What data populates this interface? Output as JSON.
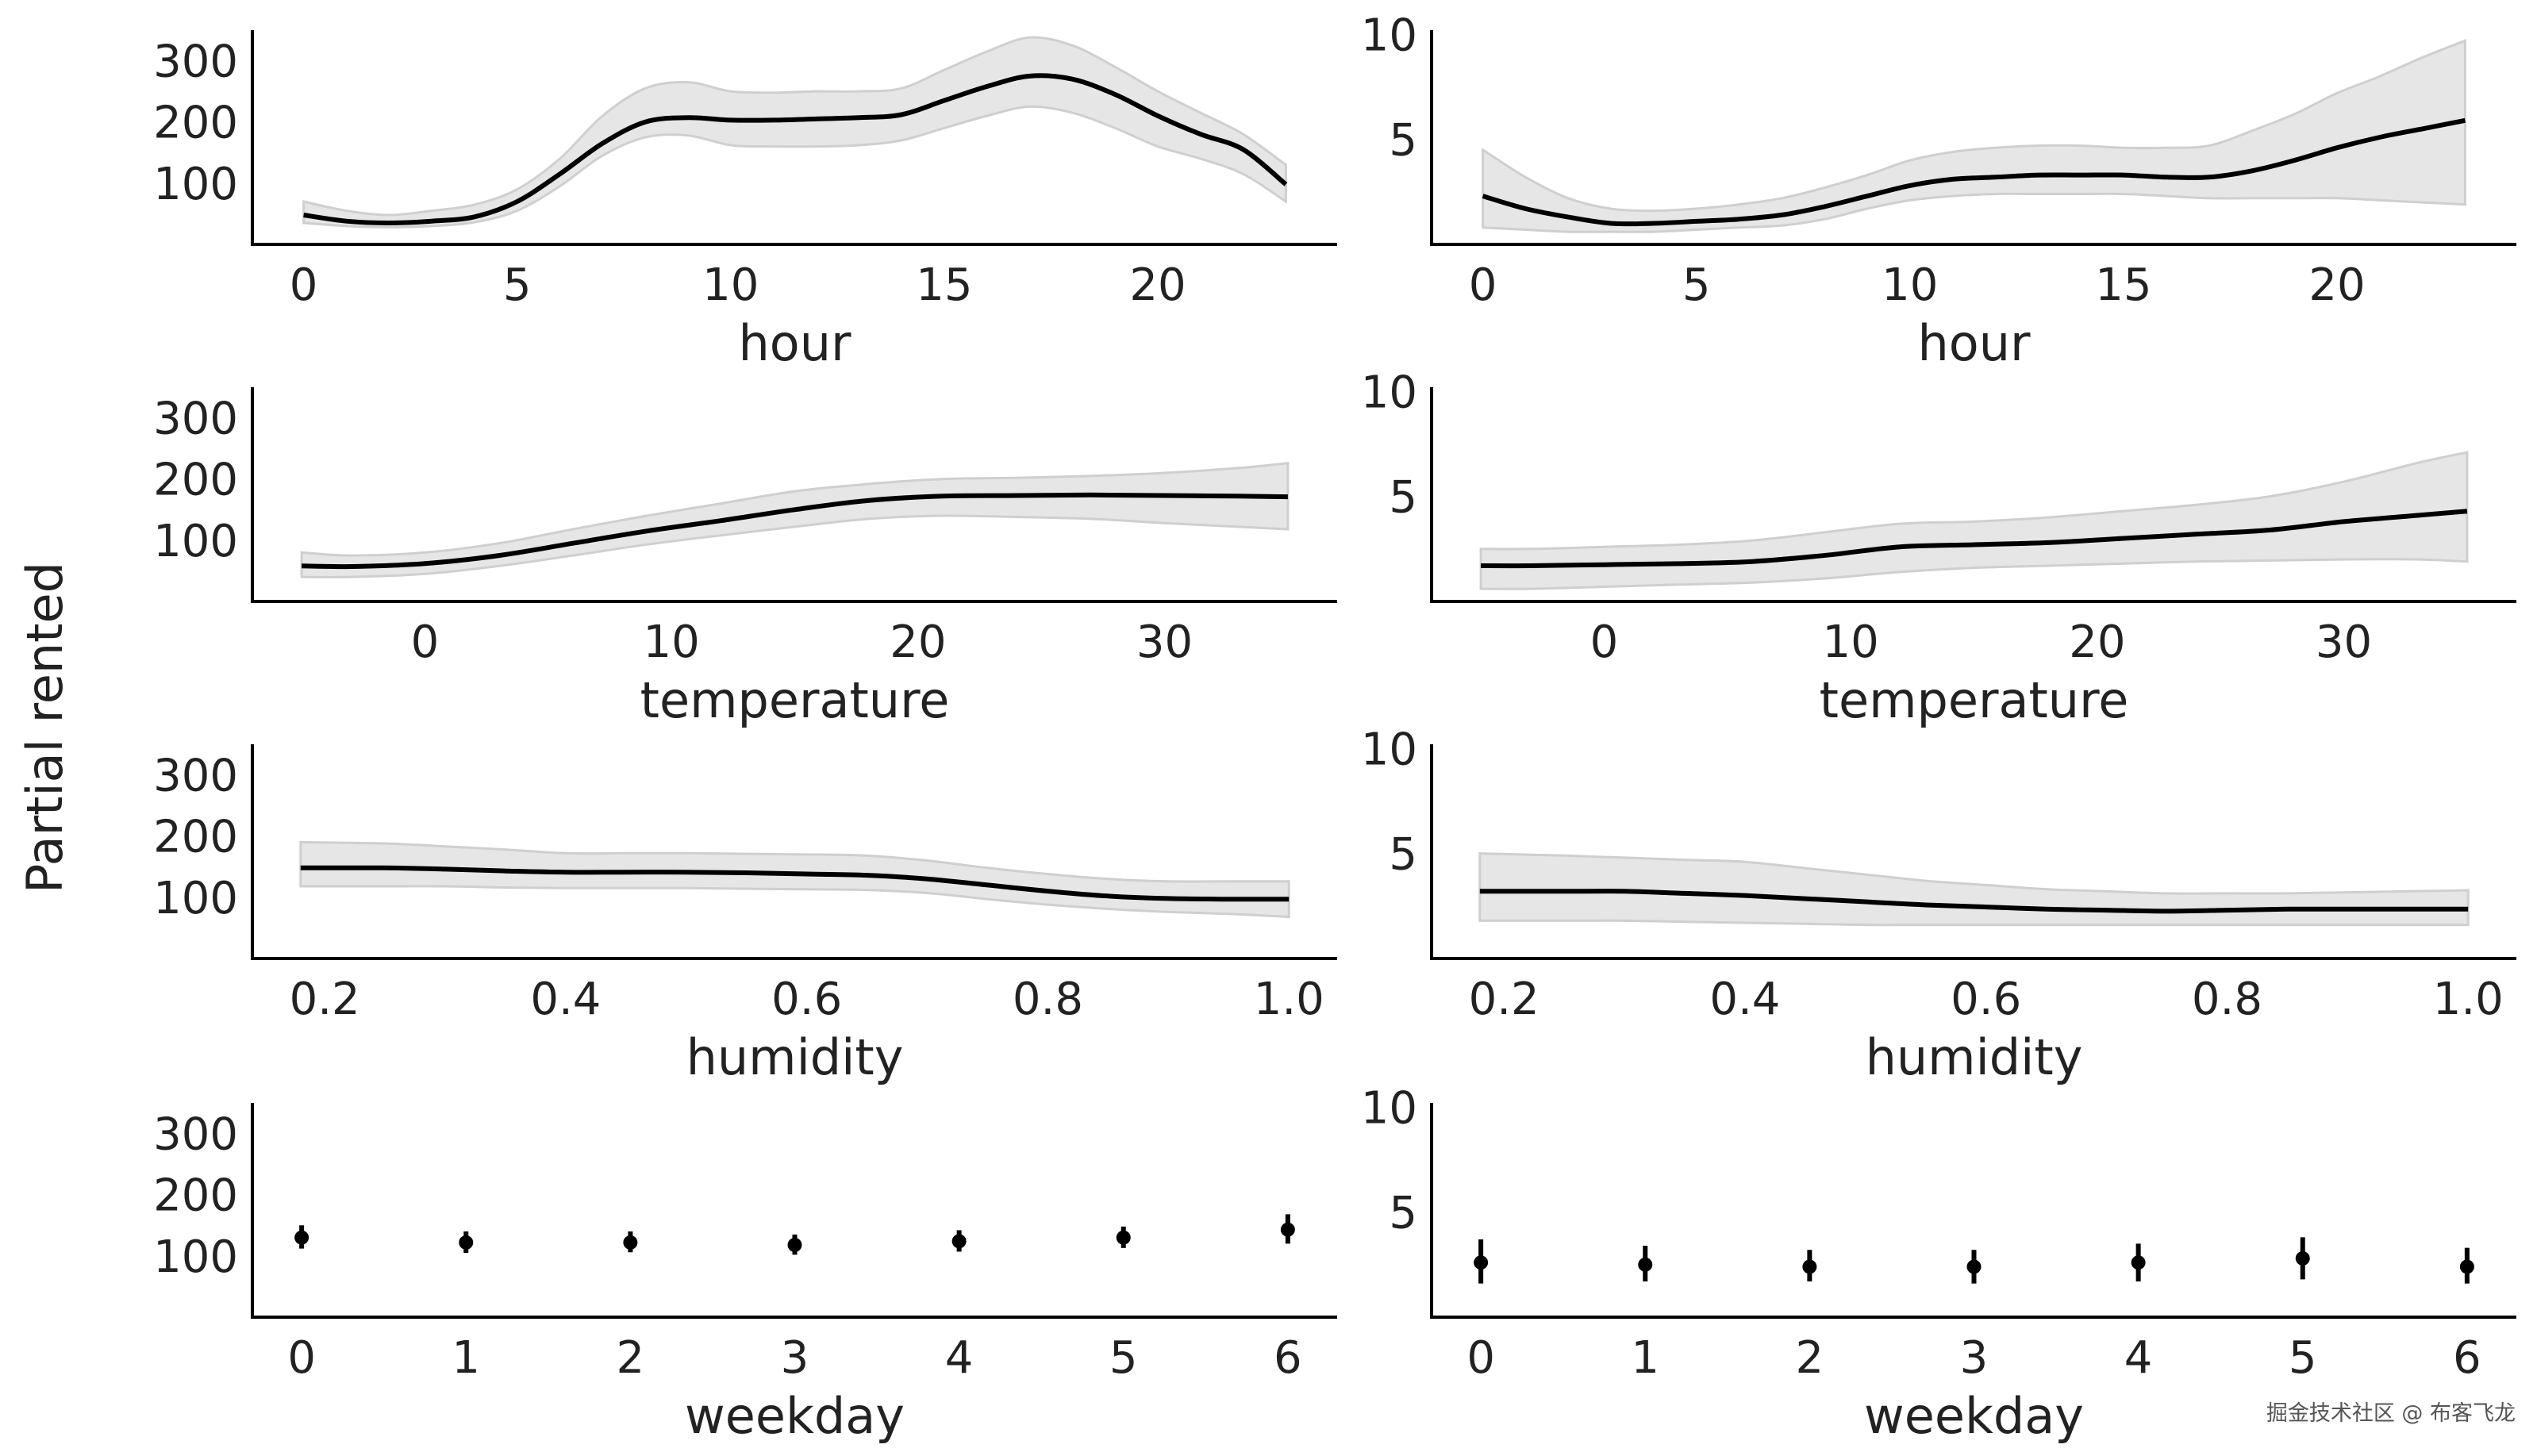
{
  "figure": {
    "ylabel": "Partial rented",
    "watermark": "掘金技术社区 @ 布客飞龙"
  },
  "chart_data": [
    {
      "type": "line",
      "panel": "left-hour",
      "xlabel": "hour",
      "xlim": [
        -1.2,
        24.2
      ],
      "ylim": [
        0,
        350
      ],
      "xticks": [
        0,
        5,
        10,
        15,
        20
      ],
      "xtick_labels": [
        "0",
        "5",
        "10",
        "15",
        "20"
      ],
      "yticks": [
        100,
        200,
        300
      ],
      "ytick_labels": [
        "100",
        "200",
        "300"
      ],
      "x": [
        0,
        1,
        2,
        3,
        4,
        5,
        6,
        7,
        8,
        9,
        10,
        11,
        12,
        13,
        14,
        15,
        16,
        17,
        18,
        19,
        20,
        21,
        22,
        23
      ],
      "y": [
        48,
        38,
        35,
        38,
        45,
        70,
        115,
        165,
        200,
        207,
        203,
        203,
        205,
        207,
        212,
        235,
        258,
        275,
        270,
        245,
        210,
        180,
        155,
        98
      ],
      "lower": [
        35,
        30,
        28,
        30,
        36,
        55,
        95,
        145,
        175,
        178,
        162,
        160,
        160,
        162,
        170,
        190,
        210,
        225,
        215,
        190,
        160,
        140,
        115,
        70
      ],
      "upper": [
        70,
        55,
        48,
        55,
        65,
        90,
        140,
        210,
        255,
        265,
        250,
        248,
        250,
        250,
        255,
        285,
        315,
        338,
        325,
        290,
        250,
        215,
        180,
        130
      ]
    },
    {
      "type": "line",
      "panel": "right-hour",
      "xlabel": "hour",
      "xlim": [
        -1.2,
        24.2
      ],
      "ylim": [
        0,
        10.2
      ],
      "xticks": [
        0,
        5,
        10,
        15,
        20
      ],
      "xtick_labels": [
        "0",
        "5",
        "10",
        "15",
        "20"
      ],
      "yticks": [
        5,
        10
      ],
      "ytick_labels": [
        "5",
        "10"
      ],
      "x": [
        0,
        1,
        2,
        3,
        4,
        5,
        6,
        7,
        8,
        9,
        10,
        11,
        12,
        13,
        14,
        15,
        16,
        17,
        18,
        19,
        20,
        21,
        22,
        23
      ],
      "y": [
        2.3,
        1.7,
        1.3,
        1.0,
        1.0,
        1.1,
        1.2,
        1.4,
        1.8,
        2.3,
        2.8,
        3.1,
        3.2,
        3.3,
        3.3,
        3.3,
        3.2,
        3.2,
        3.5,
        4.0,
        4.6,
        5.1,
        5.5,
        5.9
      ],
      "lower": [
        0.8,
        0.7,
        0.6,
        0.6,
        0.6,
        0.7,
        0.8,
        0.9,
        1.2,
        1.7,
        2.1,
        2.3,
        2.4,
        2.4,
        2.4,
        2.4,
        2.3,
        2.2,
        2.2,
        2.2,
        2.2,
        2.1,
        2.0,
        1.9
      ],
      "upper": [
        4.5,
        3.2,
        2.2,
        1.7,
        1.6,
        1.7,
        1.9,
        2.2,
        2.7,
        3.3,
        4.0,
        4.4,
        4.6,
        4.7,
        4.7,
        4.6,
        4.6,
        4.7,
        5.4,
        6.2,
        7.2,
        8.0,
        8.9,
        9.7
      ]
    },
    {
      "type": "line",
      "panel": "left-temperature",
      "xlabel": "temperature",
      "xlim": [
        -7,
        37
      ],
      "ylim": [
        0,
        350
      ],
      "xticks": [
        0,
        10,
        20,
        30
      ],
      "xtick_labels": [
        "0",
        "10",
        "20",
        "30"
      ],
      "yticks": [
        100,
        200,
        300
      ],
      "ytick_labels": [
        "100",
        "200",
        "300"
      ],
      "x": [
        -5,
        -3,
        0,
        3,
        6,
        9,
        12,
        15,
        18,
        21,
        24,
        27,
        30,
        33,
        35
      ],
      "y": [
        58,
        57,
        62,
        75,
        95,
        115,
        132,
        150,
        165,
        172,
        173,
        174,
        173,
        172,
        171
      ],
      "lower": [
        40,
        40,
        45,
        58,
        75,
        93,
        108,
        122,
        135,
        140,
        138,
        135,
        128,
        122,
        118
      ],
      "upper": [
        80,
        75,
        80,
        95,
        118,
        140,
        160,
        180,
        192,
        200,
        202,
        205,
        210,
        218,
        226
      ]
    },
    {
      "type": "line",
      "panel": "right-temperature",
      "xlabel": "temperature",
      "xlim": [
        -7,
        37
      ],
      "ylim": [
        0,
        10.2
      ],
      "xticks": [
        0,
        10,
        20,
        30
      ],
      "xtick_labels": [
        "0",
        "10",
        "20",
        "30"
      ],
      "yticks": [
        5,
        10
      ],
      "ytick_labels": [
        "5",
        "10"
      ],
      "x": [
        -5,
        -3,
        0,
        3,
        6,
        9,
        12,
        15,
        18,
        21,
        24,
        27,
        30,
        33,
        35
      ],
      "y": [
        1.7,
        1.7,
        1.75,
        1.8,
        1.9,
        2.2,
        2.6,
        2.7,
        2.8,
        3.0,
        3.2,
        3.4,
        3.8,
        4.1,
        4.3
      ],
      "lower": [
        0.6,
        0.6,
        0.7,
        0.8,
        0.9,
        1.1,
        1.4,
        1.6,
        1.7,
        1.8,
        1.9,
        1.95,
        2.0,
        2.0,
        1.9
      ],
      "upper": [
        2.5,
        2.5,
        2.6,
        2.7,
        2.9,
        3.3,
        3.7,
        3.8,
        4.0,
        4.3,
        4.6,
        5.0,
        5.7,
        6.6,
        7.1
      ]
    },
    {
      "type": "line",
      "panel": "left-humidity",
      "xlabel": "humidity",
      "xlim": [
        0.14,
        1.04
      ],
      "ylim": [
        0,
        350
      ],
      "xticks": [
        0.2,
        0.4,
        0.6,
        0.8,
        1.0
      ],
      "xtick_labels": [
        "0.2",
        "0.4",
        "0.6",
        "0.8",
        "1.0"
      ],
      "yticks": [
        100,
        200,
        300
      ],
      "ytick_labels": [
        "100",
        "200",
        "300"
      ],
      "x": [
        0.18,
        0.25,
        0.3,
        0.35,
        0.4,
        0.45,
        0.5,
        0.55,
        0.6,
        0.65,
        0.7,
        0.75,
        0.8,
        0.85,
        0.9,
        0.95,
        1.0
      ],
      "y": [
        148,
        148,
        146,
        143,
        141,
        141,
        141,
        140,
        138,
        136,
        130,
        120,
        110,
        102,
        98,
        97,
        97
      ],
      "lower": [
        118,
        118,
        118,
        116,
        115,
        115,
        115,
        114,
        113,
        112,
        107,
        97,
        88,
        81,
        76,
        73,
        68
      ],
      "upper": [
        190,
        188,
        183,
        178,
        172,
        172,
        172,
        171,
        170,
        168,
        160,
        148,
        138,
        130,
        126,
        126,
        126
      ]
    },
    {
      "type": "line",
      "panel": "right-humidity",
      "xlabel": "humidity",
      "xlim": [
        0.14,
        1.04
      ],
      "ylim": [
        0,
        10.2
      ],
      "xticks": [
        0.2,
        0.4,
        0.6,
        0.8,
        1.0
      ],
      "xtick_labels": [
        "0.2",
        "0.4",
        "0.6",
        "0.8",
        "1.0"
      ],
      "yticks": [
        5,
        10
      ],
      "ytick_labels": [
        "5",
        "10"
      ],
      "x": [
        0.18,
        0.25,
        0.3,
        0.35,
        0.4,
        0.45,
        0.5,
        0.55,
        0.6,
        0.65,
        0.7,
        0.75,
        0.8,
        0.85,
        0.9,
        0.95,
        1.0
      ],
      "y": [
        3.2,
        3.2,
        3.2,
        3.1,
        3.0,
        2.85,
        2.7,
        2.55,
        2.45,
        2.35,
        2.3,
        2.25,
        2.3,
        2.35,
        2.35,
        2.35,
        2.35
      ],
      "lower": [
        1.8,
        1.8,
        1.8,
        1.75,
        1.7,
        1.65,
        1.6,
        1.6,
        1.6,
        1.6,
        1.6,
        1.6,
        1.6,
        1.6,
        1.6,
        1.6,
        1.6
      ],
      "upper": [
        5.0,
        4.9,
        4.8,
        4.7,
        4.6,
        4.3,
        4.0,
        3.7,
        3.5,
        3.3,
        3.2,
        3.1,
        3.1,
        3.1,
        3.15,
        3.2,
        3.25
      ]
    },
    {
      "type": "scatter",
      "panel": "left-weekday",
      "xlabel": "weekday",
      "xlim": [
        -0.3,
        6.3
      ],
      "ylim": [
        0,
        350
      ],
      "xticks": [
        0,
        1,
        2,
        3,
        4,
        5,
        6
      ],
      "xtick_labels": [
        "0",
        "1",
        "2",
        "3",
        "4",
        "5",
        "6"
      ],
      "yticks": [
        100,
        200,
        300
      ],
      "ytick_labels": [
        "100",
        "200",
        "300"
      ],
      "x": [
        0,
        1,
        2,
        3,
        4,
        5,
        6
      ],
      "y": [
        130,
        122,
        122,
        118,
        124,
        130,
        143
      ],
      "lower": [
        112,
        105,
        106,
        102,
        107,
        113,
        120
      ],
      "upper": [
        150,
        140,
        140,
        135,
        142,
        148,
        168
      ]
    },
    {
      "type": "scatter",
      "panel": "right-weekday",
      "xlabel": "weekday",
      "xlim": [
        -0.3,
        6.3
      ],
      "ylim": [
        0,
        10.2
      ],
      "xticks": [
        0,
        1,
        2,
        3,
        4,
        5,
        6
      ],
      "xtick_labels": [
        "0",
        "1",
        "2",
        "3",
        "4",
        "5",
        "6"
      ],
      "yticks": [
        5,
        10
      ],
      "ytick_labels": [
        "5",
        "10"
      ],
      "x": [
        0,
        1,
        2,
        3,
        4,
        5,
        6
      ],
      "y": [
        2.6,
        2.5,
        2.4,
        2.4,
        2.6,
        2.8,
        2.4
      ],
      "lower": [
        1.6,
        1.7,
        1.7,
        1.6,
        1.7,
        1.8,
        1.6
      ],
      "upper": [
        3.7,
        3.4,
        3.2,
        3.2,
        3.5,
        3.8,
        3.3
      ]
    }
  ]
}
